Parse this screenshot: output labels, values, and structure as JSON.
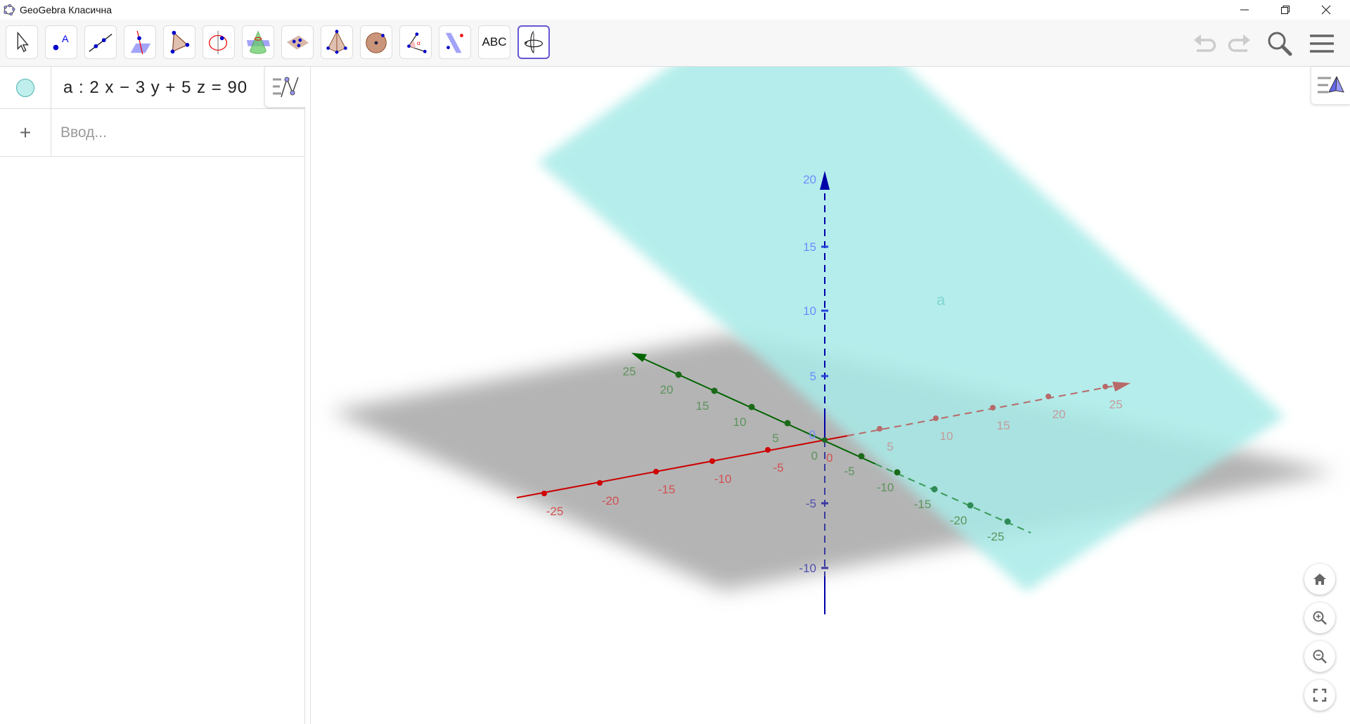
{
  "window": {
    "title": "GeoGebra Класична",
    "minimize": "minimize",
    "restore": "restore",
    "close": "close"
  },
  "toolbar": {
    "tools": [
      {
        "name": "move",
        "icon": "arrow-cursor-icon"
      },
      {
        "name": "point",
        "icon": "point-icon",
        "label": "A"
      },
      {
        "name": "line",
        "icon": "line-icon"
      },
      {
        "name": "perpendicular-line",
        "icon": "perpendicular-line-icon"
      },
      {
        "name": "polygon",
        "icon": "polygon-icon"
      },
      {
        "name": "circle-around-line",
        "icon": "circle-axis-icon"
      },
      {
        "name": "intersect-surfaces",
        "icon": "cone-plane-icon"
      },
      {
        "name": "plane-three-points",
        "icon": "plane-points-icon"
      },
      {
        "name": "pyramid",
        "icon": "pyramid-icon"
      },
      {
        "name": "sphere",
        "icon": "sphere-icon"
      },
      {
        "name": "angle",
        "icon": "angle-icon",
        "label": "α"
      },
      {
        "name": "reflect-about-plane",
        "icon": "reflect-plane-icon"
      },
      {
        "name": "text",
        "icon": "text-icon",
        "label": "ABC"
      },
      {
        "name": "rotate-3d-view",
        "icon": "rotate-view-icon",
        "active": true
      }
    ],
    "undo": "undo",
    "redo": "redo",
    "search": "search",
    "menu": "menu"
  },
  "algebra": {
    "items": [
      {
        "expression": "a : 2 x − 3 y + 5 z = 90",
        "color": "#bfeeed",
        "visible": true
      }
    ],
    "input_placeholder": "Ввод...",
    "add_symbol": "+"
  },
  "graphics3d": {
    "plane_label": "a",
    "plane_color": "#a8ebe8",
    "axis_colors": {
      "x": "#cc0000",
      "y": "#006400",
      "z": "#0000aa"
    },
    "x_ticks": [
      "-25",
      "-20",
      "-15",
      "-10",
      "-5",
      "5",
      "10",
      "15",
      "20",
      "25"
    ],
    "y_ticks": [
      "25",
      "20",
      "15",
      "10",
      "5",
      "-5",
      "-10",
      "-15",
      "-20",
      "-25"
    ],
    "z_ticks": [
      "20",
      "15",
      "10",
      "5",
      "-5",
      "-10"
    ],
    "origin_labels": {
      "x": "0",
      "y": "0",
      "z": "0"
    },
    "controls": [
      "home",
      "zoom-in",
      "zoom-out",
      "fullscreen"
    ]
  }
}
